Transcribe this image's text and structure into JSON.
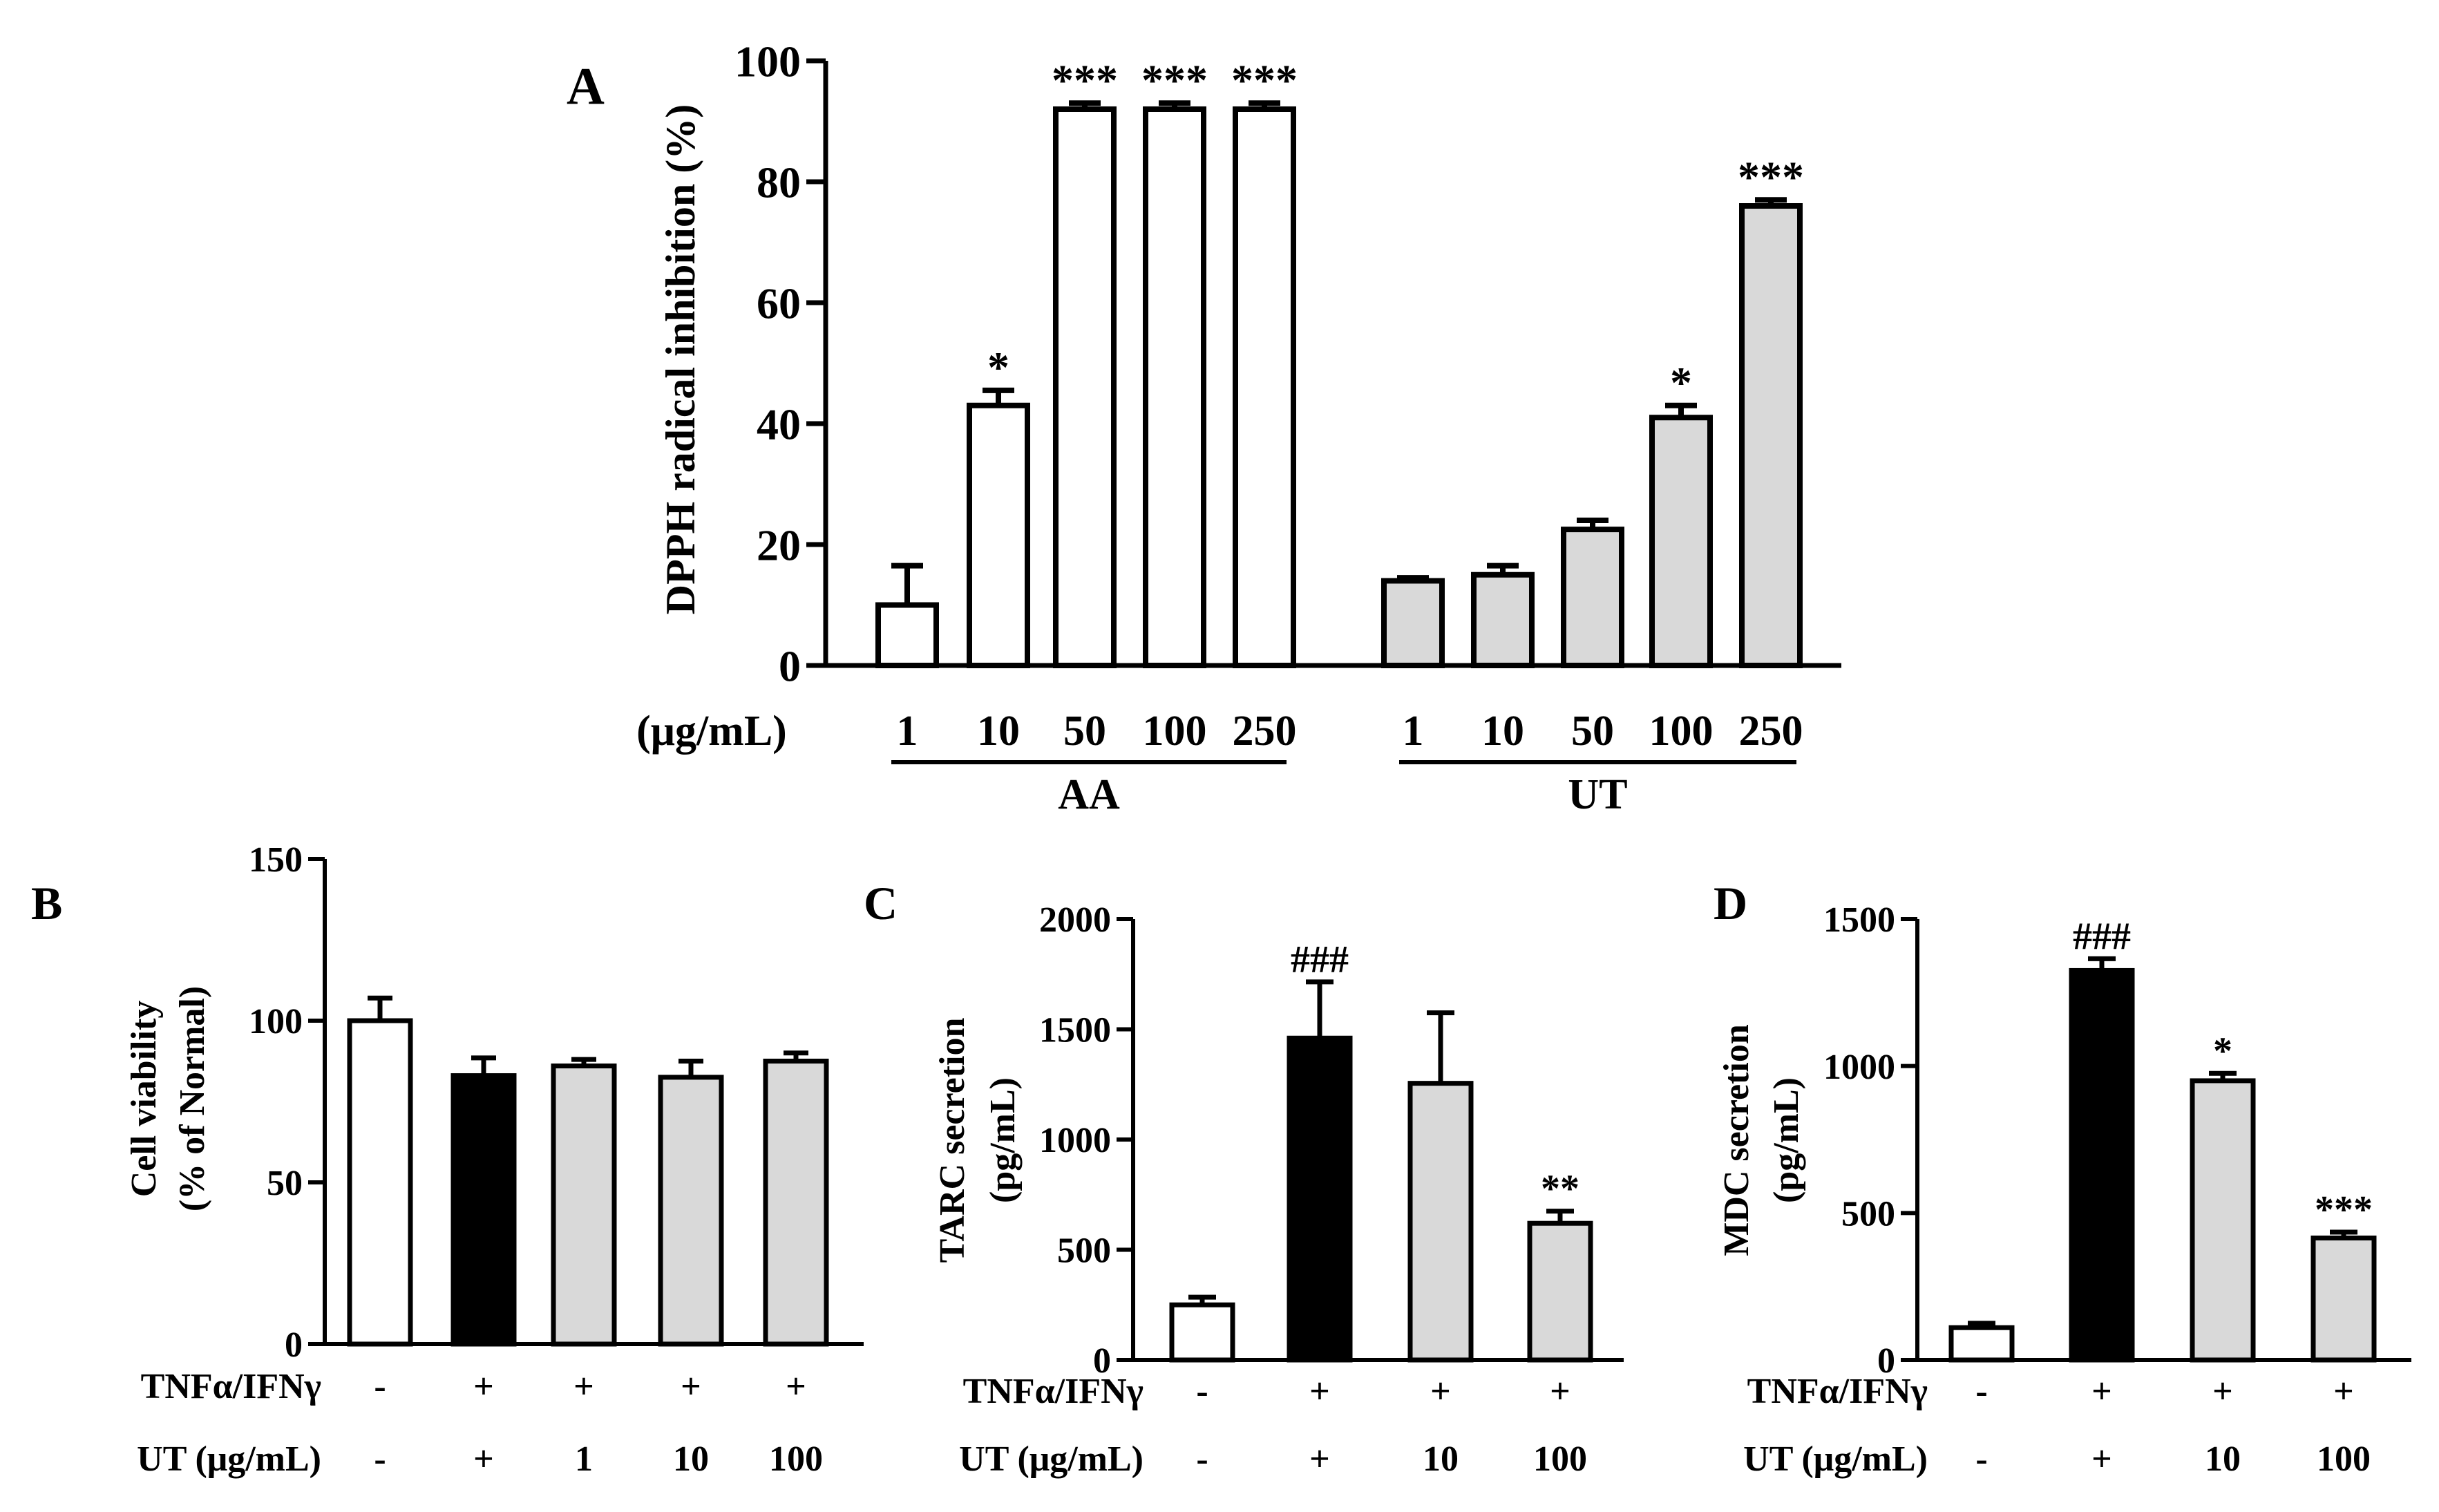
{
  "colors": {
    "axis": "#000000",
    "white_bar": "#ffffff",
    "black_bar": "#000000",
    "gray_bar": "#d9d9d9"
  },
  "chart_data": [
    {
      "panel": "A",
      "type": "bar",
      "ylabel": "DPPH radical inhibition (%)",
      "ylim": [
        0,
        100
      ],
      "yticks": [
        "0",
        "20",
        "40",
        "60",
        "80",
        "100"
      ],
      "unit_label": "(μg/mL)",
      "groups": [
        {
          "name": "AA",
          "fill": "white",
          "categories": [
            "1",
            "10",
            "50",
            "100",
            "250"
          ],
          "values": [
            10,
            43,
            92,
            92,
            92
          ],
          "errors": [
            6.5,
            2.5,
            1,
            1,
            1
          ],
          "significance": [
            "",
            "*",
            "***",
            "***",
            "***"
          ]
        },
        {
          "name": "UT",
          "fill": "gray",
          "categories": [
            "1",
            "10",
            "50",
            "100",
            "250"
          ],
          "values": [
            14,
            15,
            22.5,
            41,
            76
          ],
          "errors": [
            0.5,
            1.5,
            1.5,
            2,
            1
          ],
          "significance": [
            "",
            "",
            "",
            "*",
            "***"
          ]
        }
      ]
    },
    {
      "panel": "B",
      "type": "bar",
      "ylabel": "Cell viability",
      "ylabel2": "(% of Normal)",
      "ylim": [
        0,
        150
      ],
      "yticks": [
        "0",
        "50",
        "100",
        "150"
      ],
      "row_labels": [
        "TNFα/IFNγ",
        "UT (μg/mL)"
      ],
      "row1": [
        "-",
        "+",
        "+",
        "+",
        "+"
      ],
      "row2": [
        "-",
        "+",
        "1",
        "10",
        "100"
      ],
      "values": [
        100,
        83,
        86,
        82.5,
        87.5
      ],
      "errors": [
        7,
        5.5,
        2,
        5,
        2.5
      ],
      "fills": [
        "white",
        "black",
        "gray",
        "gray",
        "gray"
      ],
      "significance": [
        "",
        "",
        "",
        "",
        ""
      ]
    },
    {
      "panel": "C",
      "type": "bar",
      "ylabel": "TARC secretion",
      "ylabel2": "(pg/mL)",
      "ylim": [
        0,
        2000
      ],
      "yticks": [
        "0",
        "500",
        "1000",
        "1500",
        "2000"
      ],
      "row_labels": [
        "TNFα/IFNγ",
        "UT (μg/mL)"
      ],
      "row1": [
        "-",
        "+",
        "+",
        "+"
      ],
      "row2": [
        "-",
        "+",
        "10",
        "100"
      ],
      "values": [
        250,
        1460,
        1255,
        620
      ],
      "errors": [
        35,
        255,
        320,
        55
      ],
      "fills": [
        "white",
        "black",
        "gray",
        "gray"
      ],
      "significance": [
        "",
        "###",
        "",
        "**"
      ]
    },
    {
      "panel": "D",
      "type": "bar",
      "ylabel": "MDC secretion",
      "ylabel2": "(pg/mL)",
      "ylim": [
        0,
        1500
      ],
      "yticks": [
        "0",
        "500",
        "1000",
        "1500"
      ],
      "row_labels": [
        "TNFα/IFNγ",
        "UT (μg/mL)"
      ],
      "row1": [
        "-",
        "+",
        "+",
        "+"
      ],
      "row2": [
        "-",
        "+",
        "10",
        "100"
      ],
      "values": [
        110,
        1325,
        950,
        415
      ],
      "errors": [
        15,
        40,
        25,
        20
      ],
      "fills": [
        "white",
        "black",
        "gray",
        "gray"
      ],
      "significance": [
        "",
        "###",
        "*",
        "***"
      ]
    }
  ]
}
